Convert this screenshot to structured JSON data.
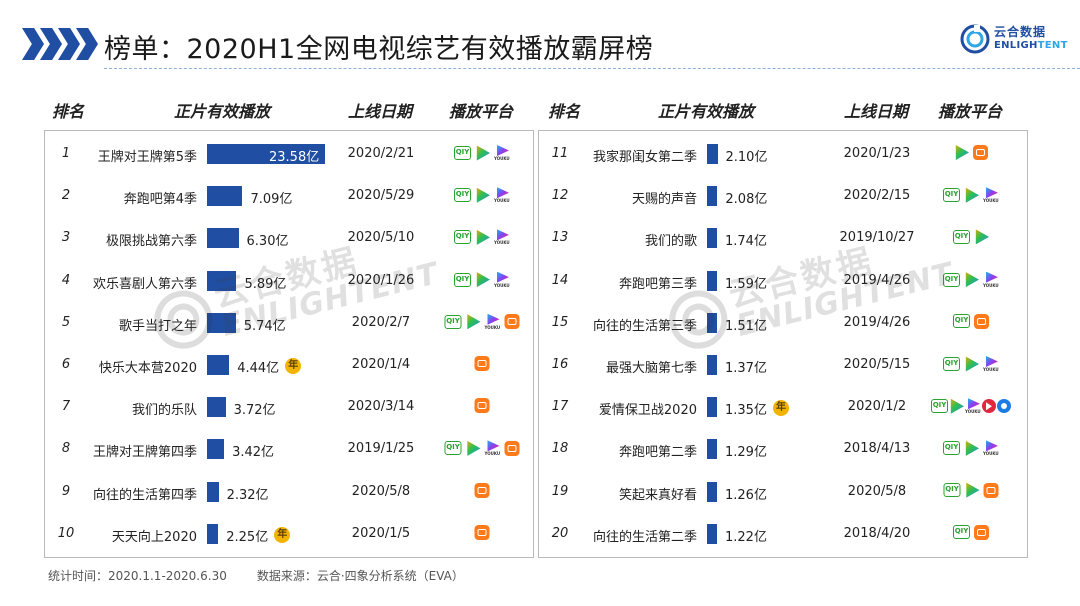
{
  "header": {
    "title": "榜单：2020H1全网电视综艺有效播放霸屏榜",
    "logo_cn": "云合数据",
    "logo_en_a": "ENLIGH",
    "logo_en_b": "TENT"
  },
  "columns": {
    "rank": "排名",
    "play": "正片有效播放",
    "date": "上线日期",
    "platform": "播放平台"
  },
  "badge_label": "年",
  "watermark": {
    "cn": "云合数据",
    "en": "ENLIGHTENT"
  },
  "rows": [
    {
      "rank": "1",
      "name": "王牌对王牌第5季",
      "value": 23.58,
      "label": "23.58亿",
      "date": "2020/2/21",
      "badge": false,
      "platforms": [
        "iqiyi",
        "tencent",
        "youku"
      ]
    },
    {
      "rank": "2",
      "name": "奔跑吧第4季",
      "value": 7.09,
      "label": "7.09亿",
      "date": "2020/5/29",
      "badge": false,
      "platforms": [
        "iqiyi",
        "tencent",
        "youku"
      ]
    },
    {
      "rank": "3",
      "name": "极限挑战第六季",
      "value": 6.3,
      "label": "6.30亿",
      "date": "2020/5/10",
      "badge": false,
      "platforms": [
        "iqiyi",
        "tencent",
        "youku"
      ]
    },
    {
      "rank": "4",
      "name": "欢乐喜剧人第六季",
      "value": 5.89,
      "label": "5.89亿",
      "date": "2020/1/26",
      "badge": false,
      "platforms": [
        "iqiyi",
        "tencent",
        "youku"
      ]
    },
    {
      "rank": "5",
      "name": "歌手当打之年",
      "value": 5.74,
      "label": "5.74亿",
      "date": "2020/2/7",
      "badge": false,
      "platforms": [
        "iqiyi",
        "tencent",
        "youku",
        "mango"
      ]
    },
    {
      "rank": "6",
      "name": "快乐大本营2020",
      "value": 4.44,
      "label": "4.44亿",
      "date": "2020/1/4",
      "badge": true,
      "platforms": [
        "mango"
      ]
    },
    {
      "rank": "7",
      "name": "我们的乐队",
      "value": 3.72,
      "label": "3.72亿",
      "date": "2020/3/14",
      "badge": false,
      "platforms": [
        "mango"
      ]
    },
    {
      "rank": "8",
      "name": "王牌对王牌第四季",
      "value": 3.42,
      "label": "3.42亿",
      "date": "2019/1/25",
      "badge": false,
      "platforms": [
        "iqiyi",
        "tencent",
        "youku",
        "mango"
      ]
    },
    {
      "rank": "9",
      "name": "向往的生活第四季",
      "value": 2.32,
      "label": "2.32亿",
      "date": "2020/5/8",
      "badge": false,
      "platforms": [
        "mango"
      ]
    },
    {
      "rank": "10",
      "name": "天天向上2020",
      "value": 2.25,
      "label": "2.25亿",
      "date": "2020/1/5",
      "badge": true,
      "platforms": [
        "mango"
      ]
    },
    {
      "rank": "11",
      "name": "我家那闺女第二季",
      "value": 2.1,
      "label": "2.10亿",
      "date": "2020/1/23",
      "badge": false,
      "platforms": [
        "tencent",
        "mango"
      ]
    },
    {
      "rank": "12",
      "name": "天赐的声音",
      "value": 2.08,
      "label": "2.08亿",
      "date": "2020/2/15",
      "badge": false,
      "platforms": [
        "iqiyi",
        "tencent",
        "youku"
      ]
    },
    {
      "rank": "13",
      "name": "我们的歌",
      "value": 1.74,
      "label": "1.74亿",
      "date": "2019/10/27",
      "badge": false,
      "platforms": [
        "iqiyi",
        "tencent"
      ]
    },
    {
      "rank": "14",
      "name": "奔跑吧第三季",
      "value": 1.59,
      "label": "1.59亿",
      "date": "2019/4/26",
      "badge": false,
      "platforms": [
        "iqiyi",
        "tencent",
        "youku"
      ]
    },
    {
      "rank": "15",
      "name": "向往的生活第三季",
      "value": 1.51,
      "label": "1.51亿",
      "date": "2019/4/26",
      "badge": false,
      "platforms": [
        "iqiyi",
        "mango"
      ]
    },
    {
      "rank": "16",
      "name": "最强大脑第七季",
      "value": 1.37,
      "label": "1.37亿",
      "date": "2020/5/15",
      "badge": false,
      "platforms": [
        "iqiyi",
        "tencent",
        "youku"
      ]
    },
    {
      "rank": "17",
      "name": "爱情保卫战2020",
      "value": 1.35,
      "label": "1.35亿",
      "date": "2020/1/2",
      "badge": true,
      "platforms": [
        "iqiyi",
        "tencent",
        "youku",
        "bilibili",
        "pptv"
      ]
    },
    {
      "rank": "18",
      "name": "奔跑吧第二季",
      "value": 1.29,
      "label": "1.29亿",
      "date": "2018/4/13",
      "badge": false,
      "platforms": [
        "iqiyi",
        "tencent",
        "youku"
      ]
    },
    {
      "rank": "19",
      "name": "笑起来真好看",
      "value": 1.26,
      "label": "1.26亿",
      "date": "2020/5/8",
      "badge": false,
      "platforms": [
        "iqiyi",
        "tencent",
        "mango"
      ]
    },
    {
      "rank": "20",
      "name": "向往的生活第二季",
      "value": 1.22,
      "label": "1.22亿",
      "date": "2018/4/20",
      "badge": false,
      "platforms": [
        "iqiyi",
        "mango"
      ]
    }
  ],
  "footer": {
    "period": "统计时间：2020.1.1-2020.6.30",
    "source": "数据来源：云合·四象分析系统（EVA）"
  },
  "colors": {
    "bar": "#1f4ea3",
    "accent": "#1f4ea3",
    "badge": "#f2b400"
  }
}
